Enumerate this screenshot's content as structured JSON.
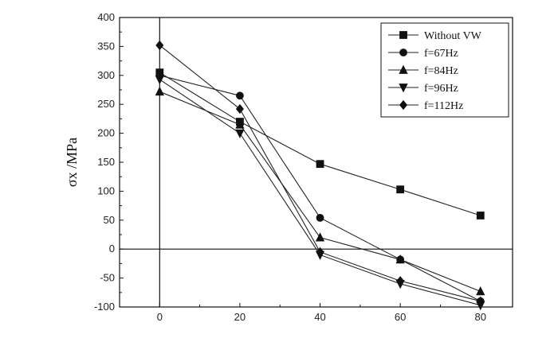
{
  "chart_data": {
    "type": "line",
    "title": "",
    "xlabel": "",
    "ylabel": "σx /MPa",
    "x": [
      0,
      20,
      40,
      60,
      80
    ],
    "xticks": [
      "0",
      "20",
      "40",
      "60",
      "80"
    ],
    "xlim": [
      -10,
      88
    ],
    "ylim": [
      -100,
      400
    ],
    "yticks": [
      "-100",
      "-50",
      "0",
      "50",
      "100",
      "150",
      "200",
      "250",
      "300",
      "350",
      "400"
    ],
    "grid": false,
    "legend_position": "top-right",
    "series": [
      {
        "name": "Without VW",
        "marker": "square",
        "values": [
          305,
          220,
          147,
          103,
          58
        ]
      },
      {
        "name": "f=67Hz",
        "marker": "circle",
        "values": [
          300,
          265,
          54,
          -18,
          -90
        ]
      },
      {
        "name": "f=84Hz",
        "marker": "triangle-up",
        "values": [
          272,
          215,
          20,
          -18,
          -73
        ]
      },
      {
        "name": "f=96Hz",
        "marker": "triangle-down",
        "values": [
          293,
          200,
          -10,
          -60,
          -97
        ]
      },
      {
        "name": "f=112Hz",
        "marker": "diamond",
        "values": [
          352,
          242,
          -5,
          -55,
          -90
        ]
      }
    ]
  }
}
